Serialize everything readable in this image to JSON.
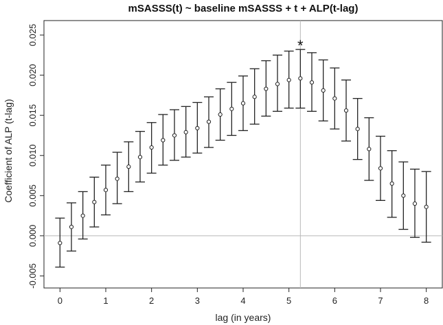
{
  "chart_data": {
    "type": "scatter",
    "title": "mSASSS(t) ~ baseline mSASSS + t + ALP(t-lag)",
    "xlabel": "lag (in years)",
    "ylabel": "Coefficient of ALP (t-lag)",
    "xlim": [
      -0.35,
      8.35
    ],
    "ylim": [
      -0.0065,
      0.0268
    ],
    "x_ticks": [
      0,
      1,
      2,
      3,
      4,
      5,
      6,
      7,
      8
    ],
    "x_tick_labels": [
      "0",
      "1",
      "2",
      "3",
      "4",
      "5",
      "6",
      "7",
      "8"
    ],
    "y_ticks": [
      -0.005,
      0.0,
      0.005,
      0.01,
      0.015,
      0.02,
      0.025
    ],
    "y_tick_labels": [
      "-0.005",
      "0.000",
      "0.005",
      "0.010",
      "0.015",
      "0.020",
      "0.025"
    ],
    "reference_hline": 0.0,
    "reference_vline": 5.25,
    "annotation": {
      "text": "*",
      "x": 5.25
    },
    "grid": false,
    "series": [
      {
        "x": [
          0,
          0.25,
          0.5,
          0.75,
          1,
          1.25,
          1.5,
          1.75,
          2,
          2.25,
          2.5,
          2.75,
          3,
          3.25,
          3.5,
          3.75,
          4,
          4.25,
          4.5,
          4.75,
          5,
          5.25,
          5.5,
          5.75,
          6,
          6.25,
          6.5,
          6.75,
          7,
          7.25,
          7.5,
          7.75,
          8
        ],
        "y": [
          -0.0009,
          0.0011,
          0.0025,
          0.0042,
          0.0057,
          0.0071,
          0.0086,
          0.0098,
          0.011,
          0.0119,
          0.0125,
          0.0129,
          0.0134,
          0.0142,
          0.0151,
          0.0158,
          0.0165,
          0.0173,
          0.0183,
          0.0189,
          0.0194,
          0.0196,
          0.0191,
          0.0181,
          0.0171,
          0.0156,
          0.0133,
          0.0108,
          0.0084,
          0.0065,
          0.005,
          0.004,
          0.0036
        ],
        "lower": [
          -0.0039,
          -0.0019,
          -0.0004,
          0.0011,
          0.0026,
          0.004,
          0.0055,
          0.0067,
          0.0078,
          0.0088,
          0.0094,
          0.0098,
          0.0103,
          0.011,
          0.0119,
          0.0125,
          0.0131,
          0.0139,
          0.0149,
          0.0155,
          0.0159,
          0.0159,
          0.0155,
          0.0143,
          0.0133,
          0.0118,
          0.0095,
          0.0069,
          0.0044,
          0.0023,
          0.0008,
          -0.0002,
          -0.0008
        ],
        "upper": [
          0.0022,
          0.0041,
          0.0055,
          0.0073,
          0.0088,
          0.0104,
          0.0117,
          0.013,
          0.0141,
          0.0151,
          0.0157,
          0.0161,
          0.0166,
          0.0173,
          0.0183,
          0.0191,
          0.0199,
          0.0208,
          0.0218,
          0.0225,
          0.023,
          0.0232,
          0.0228,
          0.0219,
          0.0209,
          0.0194,
          0.0171,
          0.0147,
          0.0124,
          0.0106,
          0.0092,
          0.0083,
          0.008
        ]
      }
    ]
  }
}
